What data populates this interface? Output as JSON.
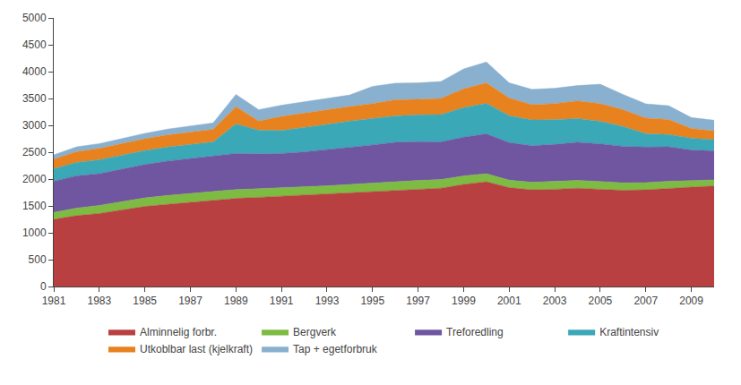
{
  "chart_data": {
    "type": "area",
    "stacked": true,
    "x": [
      1981,
      1982,
      1983,
      1984,
      1985,
      1986,
      1987,
      1988,
      1989,
      1990,
      1991,
      1992,
      1993,
      1994,
      1995,
      1996,
      1997,
      1998,
      1999,
      2000,
      2001,
      2002,
      2003,
      2004,
      2005,
      2006,
      2007,
      2008,
      2009,
      2010
    ],
    "series": [
      {
        "name": "Alminnelig forbr.",
        "color": "#b94040",
        "values": [
          1250,
          1320,
          1360,
          1430,
          1490,
          1530,
          1570,
          1610,
          1640,
          1660,
          1680,
          1700,
          1720,
          1740,
          1760,
          1790,
          1810,
          1830,
          1900,
          1950,
          1840,
          1800,
          1810,
          1830,
          1810,
          1790,
          1800,
          1830,
          1850,
          1870
        ]
      },
      {
        "name": "Bergverk",
        "color": "#7dbb42",
        "values": [
          130,
          140,
          150,
          155,
          160,
          165,
          165,
          165,
          165,
          160,
          155,
          155,
          155,
          160,
          165,
          165,
          165,
          160,
          160,
          150,
          140,
          140,
          145,
          145,
          145,
          140,
          135,
          130,
          120,
          115
        ]
      },
      {
        "name": "Treforedling",
        "color": "#7055a0",
        "values": [
          580,
          600,
          590,
          600,
          620,
          640,
          650,
          650,
          670,
          650,
          640,
          650,
          670,
          690,
          710,
          730,
          720,
          700,
          720,
          740,
          700,
          680,
          690,
          710,
          700,
          680,
          660,
          640,
          570,
          540
        ]
      },
      {
        "name": "Kraftintensiv",
        "color": "#3ba8b8",
        "values": [
          230,
          250,
          260,
          260,
          260,
          260,
          260,
          265,
          550,
          440,
          430,
          450,
          470,
          490,
          490,
          490,
          500,
          510,
          550,
          570,
          500,
          480,
          460,
          440,
          420,
          370,
          250,
          230,
          220,
          210
        ]
      },
      {
        "name": "Utkoblbar last (kjelkraft)",
        "color": "#e8821e",
        "values": [
          180,
          200,
          210,
          215,
          220,
          225,
          230,
          235,
          320,
          170,
          260,
          275,
          280,
          270,
          280,
          300,
          290,
          300,
          350,
          380,
          330,
          285,
          300,
          330,
          330,
          310,
          290,
          280,
          180,
          160
        ]
      },
      {
        "name": "Tap + egetforbruk",
        "color": "#8ab0d0",
        "values": [
          80,
          90,
          90,
          100,
          100,
          110,
          110,
          120,
          230,
          210,
          210,
          210,
          210,
          215,
          320,
          310,
          305,
          315,
          370,
          390,
          280,
          285,
          285,
          285,
          360,
          285,
          265,
          255,
          205,
          200
        ]
      }
    ],
    "xlim": [
      1981,
      2010
    ],
    "xticks": [
      1981,
      1983,
      1985,
      1987,
      1989,
      1991,
      1993,
      1995,
      1997,
      1999,
      2001,
      2003,
      2005,
      2007,
      2009
    ],
    "ylim": [
      0,
      5000
    ],
    "yticks": [
      0,
      500,
      1000,
      1500,
      2000,
      2500,
      3000,
      3500,
      4000,
      4500,
      5000
    ],
    "grid": false,
    "legend": "bottom"
  }
}
